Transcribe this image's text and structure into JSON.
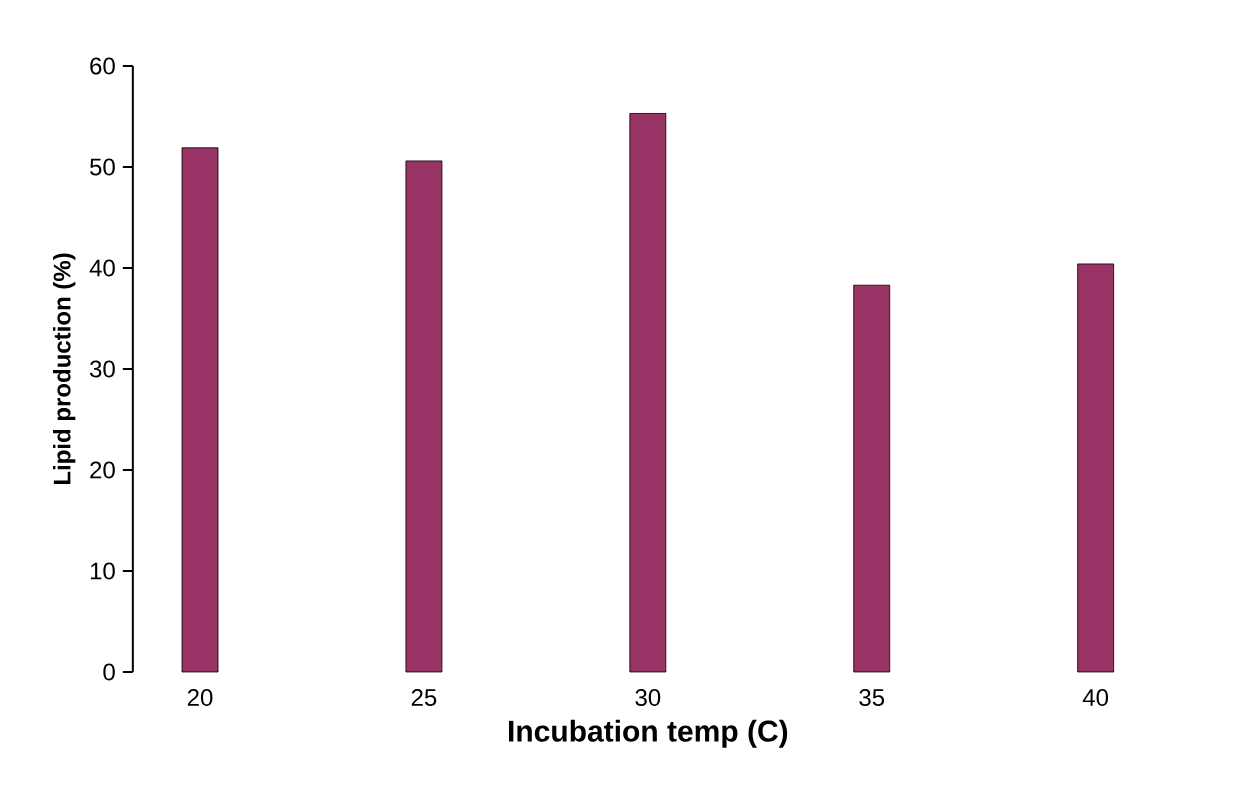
{
  "chart_data": {
    "type": "bar",
    "xlabel": "Incubation temp (C)",
    "ylabel": "Lipid production (%)",
    "categories": [
      "20",
      "25",
      "30",
      "35",
      "40"
    ],
    "values": [
      51.9,
      50.6,
      55.3,
      38.3,
      40.4
    ],
    "color": "#993366",
    "ylim": [
      0,
      60
    ],
    "yticks": [
      0,
      10,
      20,
      30,
      40,
      50,
      60
    ],
    "grid": false
  }
}
